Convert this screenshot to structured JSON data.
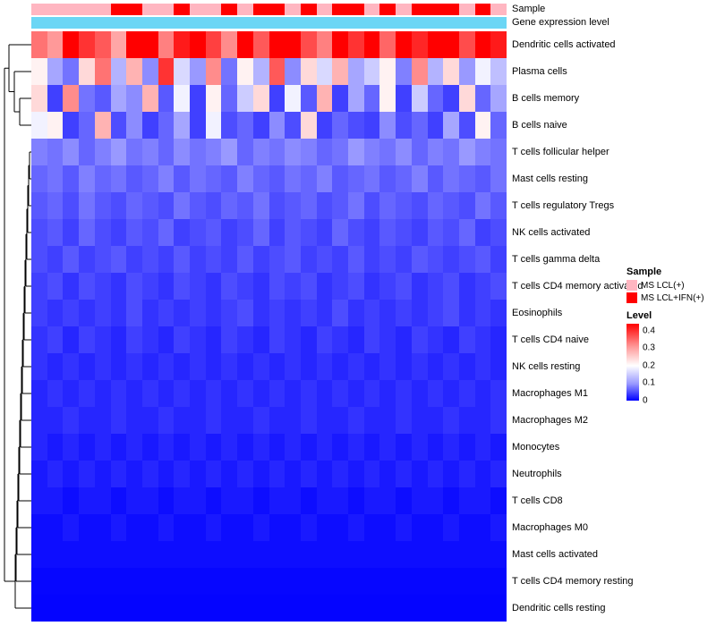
{
  "annotations": {
    "sample_label": "Sample",
    "gene_label": "Gene expression level",
    "sample_colors": {
      "MS LCL(+)": "#FFB6C1",
      "MS LCL+IFN(+)": "#FF0000"
    },
    "gene_color": "#6BD6F5",
    "sample_track": [
      "MS LCL(+)",
      "MS LCL(+)",
      "MS LCL(+)",
      "MS LCL(+)",
      "MS LCL(+)",
      "MS LCL+IFN(+)",
      "MS LCL+IFN(+)",
      "MS LCL(+)",
      "MS LCL(+)",
      "MS LCL+IFN(+)",
      "MS LCL(+)",
      "MS LCL(+)",
      "MS LCL+IFN(+)",
      "MS LCL(+)",
      "MS LCL+IFN(+)",
      "MS LCL+IFN(+)",
      "MS LCL(+)",
      "MS LCL+IFN(+)",
      "MS LCL(+)",
      "MS LCL+IFN(+)",
      "MS LCL+IFN(+)",
      "MS LCL(+)",
      "MS LCL+IFN(+)",
      "MS LCL(+)",
      "MS LCL+IFN(+)",
      "MS LCL+IFN(+)",
      "MS LCL+IFN(+)",
      "MS LCL(+)",
      "MS LCL+IFN(+)",
      "MS LCL(+)"
    ]
  },
  "legend": {
    "sample_title": "Sample",
    "sample_items": [
      {
        "label": "MS LCL(+)",
        "color": "#FFB6C1"
      },
      {
        "label": "MS LCL+IFN(+)",
        "color": "#FF0000"
      }
    ],
    "level_title": "Level",
    "level_ticks": [
      "0.4",
      "0.3",
      "0.2",
      "0.1",
      "0"
    ]
  },
  "chart_data": {
    "type": "heatmap",
    "title": "",
    "xlabel": "",
    "ylabel": "",
    "columns": 30,
    "rows": [
      "Dendritic cells activated",
      "Plasma cells",
      "B cells memory",
      "B cells naive",
      "T cells follicular helper",
      "Mast cells resting",
      "T cells regulatory Tregs",
      "NK cells activated",
      "T cells gamma delta",
      "T cells CD4 memory activated",
      "Eosinophils",
      "T cells CD4 naive",
      "NK cells resting",
      "Macrophages M1",
      "Macrophages M2",
      "Monocytes",
      "Neutrophils",
      "T cells CD8",
      "Macrophages M0",
      "Mast cells activated",
      "T cells CD4 memory resting",
      "Dendritic cells resting"
    ],
    "column_annotation": {
      "name": "Sample",
      "values": [
        "MS LCL(+)",
        "MS LCL(+)",
        "MS LCL(+)",
        "MS LCL(+)",
        "MS LCL(+)",
        "MS LCL+IFN(+)",
        "MS LCL+IFN(+)",
        "MS LCL(+)",
        "MS LCL(+)",
        "MS LCL+IFN(+)",
        "MS LCL(+)",
        "MS LCL(+)",
        "MS LCL+IFN(+)",
        "MS LCL(+)",
        "MS LCL+IFN(+)",
        "MS LCL+IFN(+)",
        "MS LCL(+)",
        "MS LCL+IFN(+)",
        "MS LCL(+)",
        "MS LCL+IFN(+)",
        "MS LCL+IFN(+)",
        "MS LCL(+)",
        "MS LCL+IFN(+)",
        "MS LCL(+)",
        "MS LCL+IFN(+)",
        "MS LCL+IFN(+)",
        "MS LCL+IFN(+)",
        "MS LCL(+)",
        "MS LCL+IFN(+)",
        "MS LCL(+)"
      ]
    },
    "color_scale": {
      "min": 0,
      "mid": 0.2,
      "max": 0.4,
      "min_color": "#0000FF",
      "mid_color": "#FFFFFF",
      "max_color": "#FF0000"
    },
    "values": [
      [
        0.31,
        0.28,
        0.45,
        0.36,
        0.33,
        0.27,
        0.41,
        0.44,
        0.3,
        0.38,
        0.45,
        0.35,
        0.29,
        0.42,
        0.33,
        0.4,
        0.44,
        0.34,
        0.3,
        0.45,
        0.36,
        0.41,
        0.32,
        0.43,
        0.37,
        0.45,
        0.4,
        0.34,
        0.44,
        0.38
      ],
      [
        0.21,
        0.13,
        0.09,
        0.23,
        0.31,
        0.14,
        0.26,
        0.11,
        0.36,
        0.17,
        0.12,
        0.29,
        0.09,
        0.21,
        0.14,
        0.33,
        0.11,
        0.23,
        0.17,
        0.26,
        0.13,
        0.16,
        0.21,
        0.1,
        0.29,
        0.14,
        0.23,
        0.12,
        0.19,
        0.15
      ],
      [
        0.23,
        0.05,
        0.29,
        0.09,
        0.07,
        0.13,
        0.11,
        0.26,
        0.07,
        0.19,
        0.05,
        0.21,
        0.08,
        0.16,
        0.23,
        0.05,
        0.19,
        0.07,
        0.26,
        0.05,
        0.13,
        0.08,
        0.21,
        0.05,
        0.16,
        0.08,
        0.05,
        0.23,
        0.08,
        0.13
      ],
      [
        0.19,
        0.21,
        0.05,
        0.08,
        0.26,
        0.06,
        0.11,
        0.05,
        0.08,
        0.13,
        0.05,
        0.19,
        0.06,
        0.08,
        0.05,
        0.11,
        0.06,
        0.23,
        0.05,
        0.08,
        0.06,
        0.05,
        0.11,
        0.06,
        0.08,
        0.05,
        0.13,
        0.06,
        0.21,
        0.08
      ],
      [
        0.1,
        0.09,
        0.11,
        0.08,
        0.1,
        0.12,
        0.09,
        0.1,
        0.08,
        0.11,
        0.09,
        0.1,
        0.12,
        0.08,
        0.1,
        0.09,
        0.11,
        0.1,
        0.08,
        0.09,
        0.12,
        0.1,
        0.09,
        0.11,
        0.08,
        0.1,
        0.09,
        0.12,
        0.1,
        0.09
      ],
      [
        0.08,
        0.09,
        0.07,
        0.1,
        0.08,
        0.09,
        0.07,
        0.08,
        0.1,
        0.07,
        0.09,
        0.08,
        0.07,
        0.1,
        0.08,
        0.07,
        0.09,
        0.08,
        0.1,
        0.07,
        0.08,
        0.09,
        0.07,
        0.08,
        0.1,
        0.07,
        0.09,
        0.08,
        0.07,
        0.09
      ],
      [
        0.07,
        0.08,
        0.06,
        0.09,
        0.07,
        0.06,
        0.08,
        0.07,
        0.06,
        0.09,
        0.07,
        0.06,
        0.08,
        0.07,
        0.09,
        0.06,
        0.07,
        0.08,
        0.06,
        0.07,
        0.09,
        0.06,
        0.08,
        0.07,
        0.06,
        0.08,
        0.07,
        0.06,
        0.09,
        0.07
      ],
      [
        0.06,
        0.07,
        0.05,
        0.08,
        0.06,
        0.05,
        0.07,
        0.06,
        0.08,
        0.05,
        0.06,
        0.07,
        0.05,
        0.06,
        0.08,
        0.05,
        0.07,
        0.06,
        0.05,
        0.08,
        0.06,
        0.05,
        0.07,
        0.06,
        0.05,
        0.07,
        0.06,
        0.08,
        0.05,
        0.06
      ],
      [
        0.06,
        0.05,
        0.07,
        0.05,
        0.06,
        0.07,
        0.05,
        0.06,
        0.05,
        0.07,
        0.05,
        0.06,
        0.05,
        0.07,
        0.05,
        0.06,
        0.07,
        0.05,
        0.06,
        0.05,
        0.07,
        0.05,
        0.06,
        0.05,
        0.07,
        0.06,
        0.05,
        0.06,
        0.07,
        0.05
      ],
      [
        0.05,
        0.06,
        0.04,
        0.06,
        0.05,
        0.04,
        0.06,
        0.05,
        0.04,
        0.06,
        0.05,
        0.04,
        0.06,
        0.05,
        0.04,
        0.06,
        0.05,
        0.06,
        0.04,
        0.05,
        0.06,
        0.04,
        0.05,
        0.06,
        0.04,
        0.05,
        0.06,
        0.04,
        0.05,
        0.06
      ],
      [
        0.05,
        0.04,
        0.05,
        0.04,
        0.05,
        0.04,
        0.06,
        0.04,
        0.05,
        0.04,
        0.05,
        0.04,
        0.05,
        0.06,
        0.04,
        0.05,
        0.04,
        0.05,
        0.04,
        0.06,
        0.04,
        0.05,
        0.04,
        0.05,
        0.04,
        0.05,
        0.06,
        0.04,
        0.05,
        0.04
      ],
      [
        0.04,
        0.05,
        0.03,
        0.05,
        0.04,
        0.03,
        0.05,
        0.04,
        0.03,
        0.05,
        0.04,
        0.03,
        0.05,
        0.04,
        0.03,
        0.05,
        0.04,
        0.03,
        0.05,
        0.04,
        0.03,
        0.05,
        0.04,
        0.03,
        0.05,
        0.04,
        0.03,
        0.05,
        0.04,
        0.03
      ],
      [
        0.04,
        0.03,
        0.04,
        0.03,
        0.04,
        0.03,
        0.04,
        0.03,
        0.04,
        0.03,
        0.04,
        0.03,
        0.04,
        0.03,
        0.04,
        0.03,
        0.04,
        0.03,
        0.04,
        0.03,
        0.04,
        0.03,
        0.04,
        0.03,
        0.04,
        0.03,
        0.04,
        0.03,
        0.04,
        0.03
      ],
      [
        0.03,
        0.04,
        0.03,
        0.04,
        0.03,
        0.04,
        0.03,
        0.04,
        0.03,
        0.04,
        0.03,
        0.04,
        0.03,
        0.04,
        0.03,
        0.04,
        0.03,
        0.04,
        0.03,
        0.04,
        0.03,
        0.04,
        0.03,
        0.04,
        0.03,
        0.04,
        0.03,
        0.04,
        0.03,
        0.04
      ],
      [
        0.03,
        0.03,
        0.04,
        0.03,
        0.03,
        0.04,
        0.03,
        0.03,
        0.04,
        0.03,
        0.03,
        0.04,
        0.03,
        0.03,
        0.04,
        0.03,
        0.03,
        0.04,
        0.03,
        0.03,
        0.04,
        0.03,
        0.03,
        0.04,
        0.03,
        0.03,
        0.04,
        0.03,
        0.03,
        0.04
      ],
      [
        0.03,
        0.02,
        0.03,
        0.02,
        0.03,
        0.02,
        0.03,
        0.02,
        0.03,
        0.02,
        0.03,
        0.02,
        0.03,
        0.02,
        0.03,
        0.02,
        0.03,
        0.02,
        0.03,
        0.02,
        0.03,
        0.02,
        0.03,
        0.02,
        0.03,
        0.02,
        0.03,
        0.02,
        0.03,
        0.02
      ],
      [
        0.02,
        0.03,
        0.02,
        0.03,
        0.02,
        0.03,
        0.02,
        0.03,
        0.02,
        0.03,
        0.02,
        0.03,
        0.02,
        0.03,
        0.02,
        0.03,
        0.02,
        0.03,
        0.02,
        0.03,
        0.02,
        0.03,
        0.02,
        0.03,
        0.02,
        0.03,
        0.02,
        0.03,
        0.02,
        0.03
      ],
      [
        0.02,
        0.02,
        0.01,
        0.02,
        0.02,
        0.01,
        0.02,
        0.02,
        0.01,
        0.02,
        0.02,
        0.01,
        0.02,
        0.02,
        0.01,
        0.02,
        0.02,
        0.01,
        0.02,
        0.02,
        0.01,
        0.02,
        0.02,
        0.01,
        0.02,
        0.02,
        0.01,
        0.02,
        0.02,
        0.01
      ],
      [
        0.01,
        0.01,
        0.02,
        0.01,
        0.01,
        0.02,
        0.01,
        0.01,
        0.02,
        0.01,
        0.01,
        0.02,
        0.01,
        0.01,
        0.02,
        0.01,
        0.01,
        0.02,
        0.01,
        0.01,
        0.02,
        0.01,
        0.01,
        0.02,
        0.01,
        0.01,
        0.02,
        0.01,
        0.01,
        0.02
      ],
      [
        0.01,
        0.01,
        0.01,
        0.01,
        0.01,
        0.01,
        0.01,
        0.01,
        0.01,
        0.01,
        0.01,
        0.01,
        0.01,
        0.01,
        0.01,
        0.01,
        0.01,
        0.01,
        0.01,
        0.01,
        0.01,
        0.01,
        0.01,
        0.01,
        0.01,
        0.01,
        0.01,
        0.01,
        0.01,
        0.01
      ],
      [
        0.005,
        0.005,
        0.005,
        0.005,
        0.005,
        0.005,
        0.005,
        0.005,
        0.005,
        0.005,
        0.005,
        0.005,
        0.005,
        0.005,
        0.005,
        0.005,
        0.005,
        0.005,
        0.005,
        0.005,
        0.005,
        0.005,
        0.005,
        0.005,
        0.005,
        0.005,
        0.005,
        0.005,
        0.005,
        0.005
      ],
      [
        0.003,
        0.003,
        0.003,
        0.003,
        0.003,
        0.003,
        0.003,
        0.003,
        0.003,
        0.003,
        0.003,
        0.003,
        0.003,
        0.003,
        0.003,
        0.003,
        0.003,
        0.003,
        0.003,
        0.003,
        0.003,
        0.003,
        0.003,
        0.003,
        0.003,
        0.003,
        0.003,
        0.003,
        0.003,
        0.003
      ]
    ]
  }
}
